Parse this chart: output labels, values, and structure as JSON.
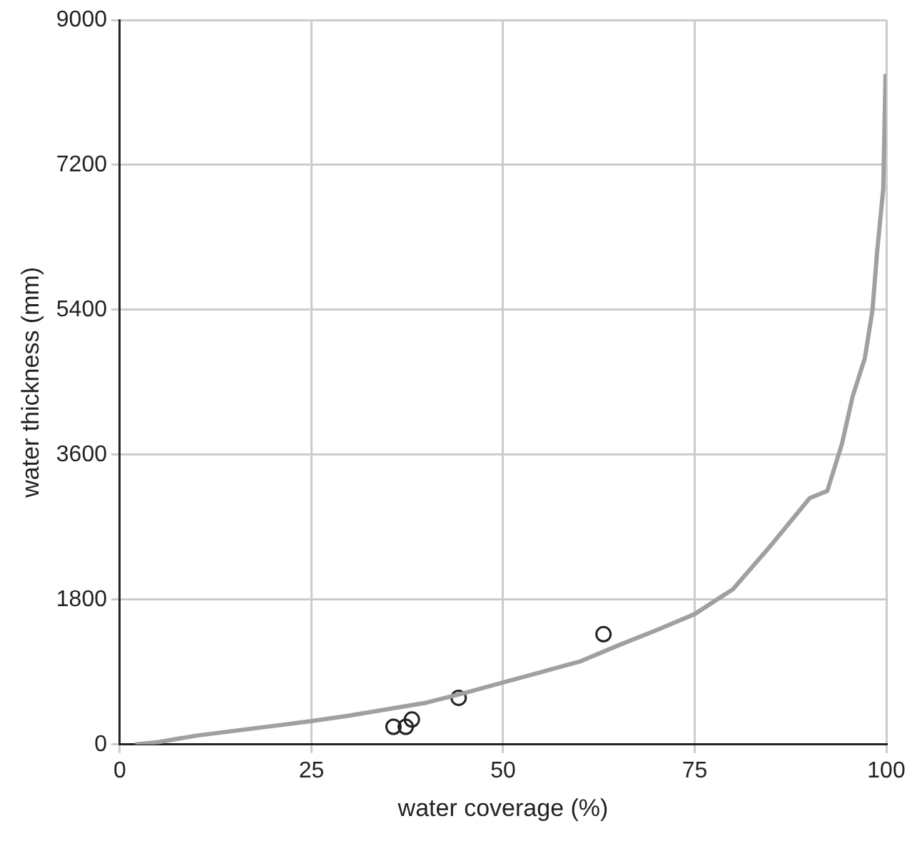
{
  "chart_data": {
    "type": "scatter",
    "xlabel": "water coverage (%)",
    "ylabel": "water thickness (mm)",
    "xlim": [
      0,
      100
    ],
    "xticks": [
      0,
      25,
      50,
      75,
      100
    ],
    "ylim": [
      0,
      9000
    ],
    "yticks": [
      0,
      1800,
      3600,
      5400,
      7200,
      9000
    ],
    "grid": true,
    "series": [
      {
        "type": "line",
        "color": "#a0a0a0",
        "marker": "none",
        "x": [
          2,
          5,
          10,
          15,
          20,
          25,
          30,
          35,
          40,
          45,
          50,
          55,
          60,
          65,
          70,
          75,
          80,
          85,
          90,
          92.3,
          94.2,
          95.6,
          97.2,
          98.2,
          98.8,
          99.6,
          99.9
        ],
        "values": [
          0,
          30,
          110,
          170,
          230,
          290,
          360,
          440,
          520,
          640,
          770,
          900,
          1030,
          1230,
          1420,
          1620,
          1930,
          2480,
          3060,
          3150,
          3730,
          4320,
          4800,
          5400,
          6120,
          6900,
          8330
        ]
      },
      {
        "type": "scatter",
        "color": "#222222",
        "marker": "circle",
        "x": [
          35.7,
          37.3,
          38.1,
          44.2,
          63.1
        ],
        "values": [
          220,
          220,
          310,
          580,
          1370
        ]
      }
    ]
  }
}
